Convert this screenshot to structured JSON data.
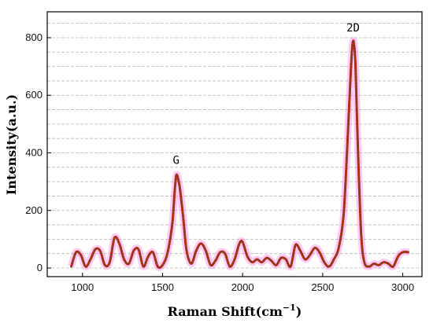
{
  "chart_data": {
    "type": "line",
    "title": "",
    "xlabel": "Raman Shift(cm",
    "xlabel_superscript": "−1",
    "xlabel_suffix": ")",
    "ylabel": "Intensity(a.u.)",
    "xlim": [
      780,
      3120
    ],
    "ylim": [
      -30,
      890
    ],
    "x_ticks": [
      1000,
      1500,
      2000,
      2500,
      3000
    ],
    "y_ticks": [
      0,
      200,
      400,
      600,
      800
    ],
    "grid": "horizontal dashed",
    "line_color": "#d42020",
    "marker_color": "#6b4a10",
    "glow_color": "#ff66dd",
    "annotations": [
      {
        "text": "G",
        "x": 1585,
        "y": 340
      },
      {
        "text": "2D",
        "x": 2690,
        "y": 800
      }
    ],
    "series": [
      {
        "x": [
          930,
          960,
          990,
          1020,
          1050,
          1080,
          1110,
          1140,
          1170,
          1200,
          1230,
          1260,
          1290,
          1320,
          1350,
          1380,
          1410,
          1440,
          1470,
          1500,
          1530,
          1560,
          1575,
          1585,
          1595,
          1610,
          1630,
          1650,
          1680,
          1710,
          1740,
          1770,
          1800,
          1830,
          1860,
          1890,
          1920,
          1950,
          1980,
          2000,
          2030,
          2060,
          2090,
          2120,
          2150,
          2180,
          2210,
          2240,
          2270,
          2300,
          2330,
          2360,
          2390,
          2420,
          2450,
          2480,
          2510,
          2540,
          2570,
          2600,
          2630,
          2650,
          2670,
          2685,
          2695,
          2705,
          2720,
          2740,
          2760,
          2790,
          2820,
          2850,
          2880,
          2910,
          2940,
          2970,
          3000,
          3040
        ],
        "y": [
          5,
          55,
          45,
          5,
          30,
          65,
          60,
          10,
          20,
          105,
          85,
          30,
          15,
          60,
          65,
          5,
          40,
          55,
          5,
          10,
          50,
          150,
          260,
          320,
          315,
          270,
          170,
          60,
          15,
          60,
          85,
          60,
          10,
          25,
          55,
          50,
          5,
          30,
          85,
          90,
          40,
          20,
          30,
          20,
          35,
          25,
          10,
          35,
          30,
          5,
          80,
          60,
          30,
          45,
          70,
          55,
          20,
          5,
          30,
          70,
          180,
          380,
          620,
          770,
          780,
          700,
          420,
          120,
          20,
          5,
          15,
          10,
          20,
          15,
          5,
          40,
          55,
          55
        ]
      }
    ]
  }
}
